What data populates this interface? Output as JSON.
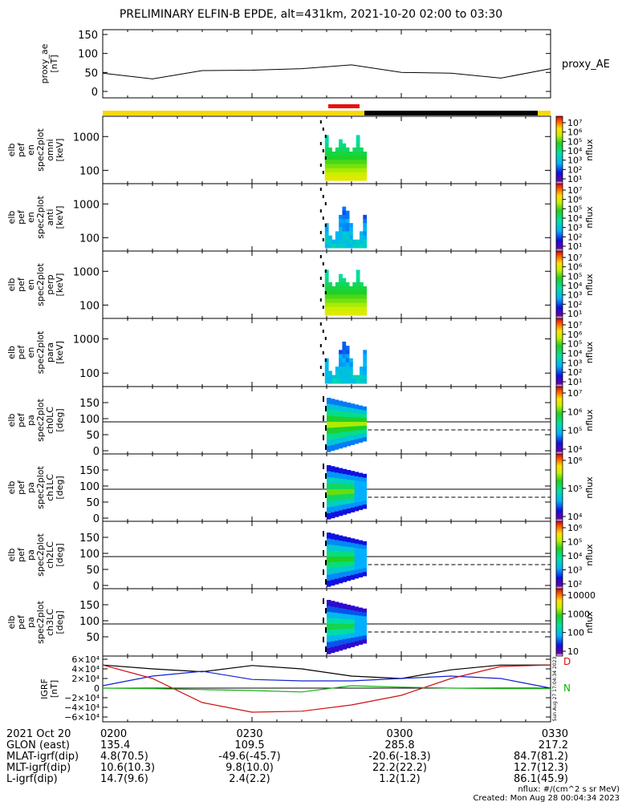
{
  "title": "PRELIMINARY ELFIN-B EPDE, alt=431km, 2021-10-20 02:00 to 03:30",
  "colors": {
    "orbit_yellow": "#f5d90a",
    "orbit_red": "#e81010",
    "orbit_black": "#000000",
    "ae_line": "#000000",
    "grf_black": "#000000",
    "grf_blue": "#1020d0",
    "grf_red": "#d01010",
    "grf_green": "#10b010"
  },
  "panels": [
    {
      "ylabel_lines": [
        "proxy_ae",
        "[nT]"
      ],
      "ticks": [
        "150",
        "100",
        "50",
        "0"
      ],
      "right_label": "proxy_AE"
    },
    {
      "ylabel_lines": [
        "elb",
        "pef",
        "en",
        "spec2plot",
        "omni",
        "[keV]"
      ],
      "ticks": [
        "1000",
        "100"
      ],
      "cbar_ticks": [
        "10⁷",
        "10⁶",
        "10⁵",
        "10⁴",
        "10³",
        "10²",
        "10¹"
      ],
      "cbar_label": "nflux"
    },
    {
      "ylabel_lines": [
        "elb",
        "pef",
        "en",
        "spec2plot",
        "anti",
        "[keV]"
      ],
      "ticks": [
        "1000",
        "100"
      ],
      "cbar_ticks": [
        "10⁷",
        "10⁶",
        "10⁵",
        "10⁴",
        "10³",
        "10²",
        "10¹"
      ],
      "cbar_label": "nflux"
    },
    {
      "ylabel_lines": [
        "elb",
        "pef",
        "en",
        "spec2plot",
        "perp",
        "[keV]"
      ],
      "ticks": [
        "1000",
        "100"
      ],
      "cbar_ticks": [
        "10⁷",
        "10⁶",
        "10⁵",
        "10⁴",
        "10³",
        "10²",
        "10¹"
      ],
      "cbar_label": "nflux"
    },
    {
      "ylabel_lines": [
        "elb",
        "pef",
        "en",
        "spec2plot",
        "para",
        "[keV]"
      ],
      "ticks": [
        "1000",
        "100"
      ],
      "cbar_ticks": [
        "10⁷",
        "10⁶",
        "10⁵",
        "10⁴",
        "10³",
        "10²",
        "10¹"
      ],
      "cbar_label": "nflux"
    },
    {
      "ylabel_lines": [
        "elb",
        "pef",
        "pa",
        "spec2plot",
        "ch0LC",
        "[deg]"
      ],
      "ticks": [
        "150",
        "100",
        "50",
        "0"
      ],
      "cbar_ticks": [
        "10⁷",
        "10⁶",
        "10⁵",
        "10⁴"
      ],
      "cbar_label": "nflux"
    },
    {
      "ylabel_lines": [
        "elb",
        "pef",
        "pa",
        "spec2plot",
        "ch1LC",
        "[deg]"
      ],
      "ticks": [
        "150",
        "100",
        "50",
        "0"
      ],
      "cbar_ticks": [
        "10⁶",
        "10⁵",
        "10⁴"
      ],
      "cbar_label": "nflux"
    },
    {
      "ylabel_lines": [
        "elb",
        "pef",
        "pa",
        "spec2plot",
        "ch2LC",
        "[deg]"
      ],
      "ticks": [
        "150",
        "100",
        "50",
        "0"
      ],
      "cbar_ticks": [
        "10⁶",
        "10⁵",
        "10⁴",
        "10³",
        "10²"
      ],
      "cbar_label": "nflux"
    },
    {
      "ylabel_lines": [
        "elb",
        "pef",
        "pa",
        "spec2plot",
        "ch3LC",
        "[deg]"
      ],
      "ticks": [
        "150",
        "100",
        "50"
      ],
      "cbar_ticks": [
        "10000",
        "1000",
        "100",
        "10"
      ],
      "cbar_label": "nflux"
    },
    {
      "ylabel_lines": [
        "IGRF",
        "[nT]"
      ],
      "ticks": [
        "6×10⁴",
        "4×10⁴",
        "2×10⁴",
        "0",
        "−2×10⁴",
        "−4×10⁴",
        "−6×10⁴"
      ],
      "side_text": "Sun Aug 27 17:04:34 2023",
      "legend": [
        "D",
        "N"
      ]
    }
  ],
  "footer": {
    "rows": [
      {
        "label": "2021 Oct 20",
        "values": [
          "0200",
          "0230",
          "0300",
          "0330"
        ]
      },
      {
        "label": "GLON (east)",
        "values": [
          "135.4",
          "109.5",
          "285.8",
          "217.2"
        ]
      },
      {
        "label": "MLAT-igrf(dip)",
        "values": [
          "4.8(70.5)",
          "-49.6(-45.7)",
          "-20.6(-18.3)",
          "84.7(81.2)"
        ]
      },
      {
        "label": "MLT-igrf(dip)",
        "values": [
          "10.6(10.3)",
          "9.8(10.0)",
          "22.2(22.2)",
          "12.7(12.3)"
        ]
      },
      {
        "label": "L-igrf(dip)",
        "values": [
          "14.7(9.6)",
          "2.4(2.2)",
          "1.2(1.2)",
          "86.1(45.9)"
        ]
      }
    ],
    "units_note": "nflux: #/(cm^2 s sr MeV)",
    "created": "Created: Mon Aug 28 00:04:34 2023"
  },
  "chart_data": [
    {
      "type": "line",
      "x": [
        "0200",
        "0210",
        "0220",
        "0230",
        "0240",
        "0250",
        "0300",
        "0310",
        "0320",
        "0330"
      ],
      "series": [
        {
          "name": "proxy_AE",
          "values": [
            48,
            33,
            55,
            56,
            60,
            70,
            50,
            48,
            35,
            60
          ]
        }
      ],
      "ylim": [
        0,
        150
      ],
      "ylabel": "proxy_ae [nT]"
    },
    {
      "type": "heatmap",
      "ylabel": "elb pef en spec2plot omni [keV]",
      "x_range": [
        "0244",
        "0253"
      ],
      "yscale": "log",
      "zscale": "log",
      "zlim": [
        10,
        10000000
      ]
    },
    {
      "type": "heatmap",
      "ylabel": "elb pef en spec2plot anti [keV]",
      "x_range": [
        "0244",
        "0253"
      ],
      "yscale": "log",
      "zscale": "log",
      "zlim": [
        10,
        10000000
      ]
    },
    {
      "type": "heatmap",
      "ylabel": "elb pef en spec2plot perp [keV]",
      "x_range": [
        "0244",
        "0253"
      ],
      "yscale": "log",
      "zscale": "log",
      "zlim": [
        10,
        10000000
      ]
    },
    {
      "type": "heatmap",
      "ylabel": "elb pef en spec2plot para [keV]",
      "x_range": [
        "0244",
        "0253"
      ],
      "yscale": "log",
      "zscale": "log",
      "zlim": [
        10,
        10000000
      ]
    },
    {
      "type": "heatmap",
      "ylabel": "elb pef pa spec2plot ch0LC [deg]",
      "ylim": [
        0,
        180
      ],
      "reference_line": 90,
      "loss_cone_deg": 65
    },
    {
      "type": "heatmap",
      "ylabel": "elb pef pa spec2plot ch1LC [deg]",
      "ylim": [
        0,
        180
      ],
      "reference_line": 90,
      "loss_cone_deg": 65
    },
    {
      "type": "heatmap",
      "ylabel": "elb pef pa spec2plot ch2LC [deg]",
      "ylim": [
        0,
        180
      ],
      "reference_line": 90,
      "loss_cone_deg": 65
    },
    {
      "type": "heatmap",
      "ylabel": "elb pef pa spec2plot ch3LC [deg]",
      "ylim": [
        0,
        180
      ],
      "reference_line": 90,
      "loss_cone_deg": 65
    },
    {
      "type": "line",
      "ylabel": "IGRF [nT]",
      "ylim": [
        -60000,
        60000
      ],
      "x": [
        "0200",
        "0210",
        "0220",
        "0230",
        "0240",
        "0250",
        "0300",
        "0310",
        "0320",
        "0330"
      ],
      "series": [
        {
          "name": "black",
          "values": [
            48000,
            40000,
            34000,
            47000,
            40000,
            25000,
            20000,
            38000,
            48000,
            48000
          ]
        },
        {
          "name": "blue",
          "values": [
            5000,
            25000,
            35000,
            18000,
            15000,
            15000,
            20000,
            25000,
            20000,
            0
          ]
        },
        {
          "name": "red",
          "values": [
            48000,
            20000,
            -30000,
            -50000,
            -48000,
            -35000,
            -15000,
            20000,
            45000,
            48000
          ]
        },
        {
          "name": "green",
          "values": [
            0,
            -1000,
            -3000,
            -5000,
            -8000,
            5000,
            2000,
            0,
            -1000,
            -1000
          ]
        }
      ]
    }
  ]
}
